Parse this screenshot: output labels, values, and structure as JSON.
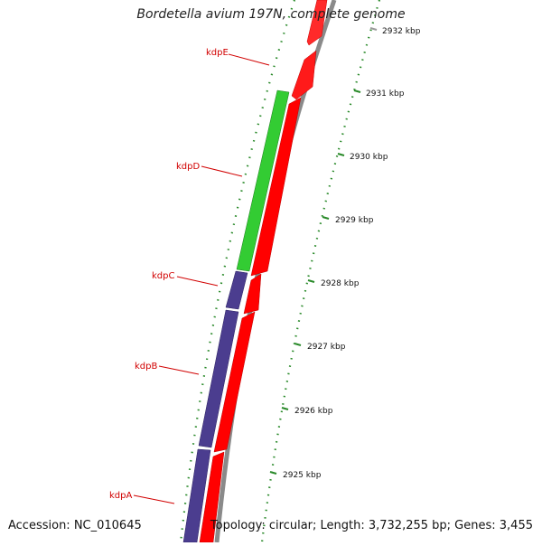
{
  "title": "Bordetella avium 197N, complete genome",
  "footer": {
    "accession": "Accession: NC_010645",
    "summary": "Topology: circular; Length: 3,732,255 bp; Genes: 3,455"
  },
  "ruler": [
    "2925 kbp",
    "2926 kbp",
    "2927 kbp",
    "2928 kbp",
    "2929 kbp",
    "2930 kbp",
    "2931 kbp",
    "2932 kbp"
  ],
  "gene_labels": [
    "kdpE",
    "kdpD",
    "kdpC",
    "kdpB",
    "kdpA"
  ],
  "colors": {
    "forward_cds": "#ff0000",
    "kdpD_feature": "#33cc33",
    "kdp_feature": "#4b3d8f",
    "backbone": "#8a8a8a",
    "ticks": "#2a8a2a",
    "label": "#d10000"
  }
}
